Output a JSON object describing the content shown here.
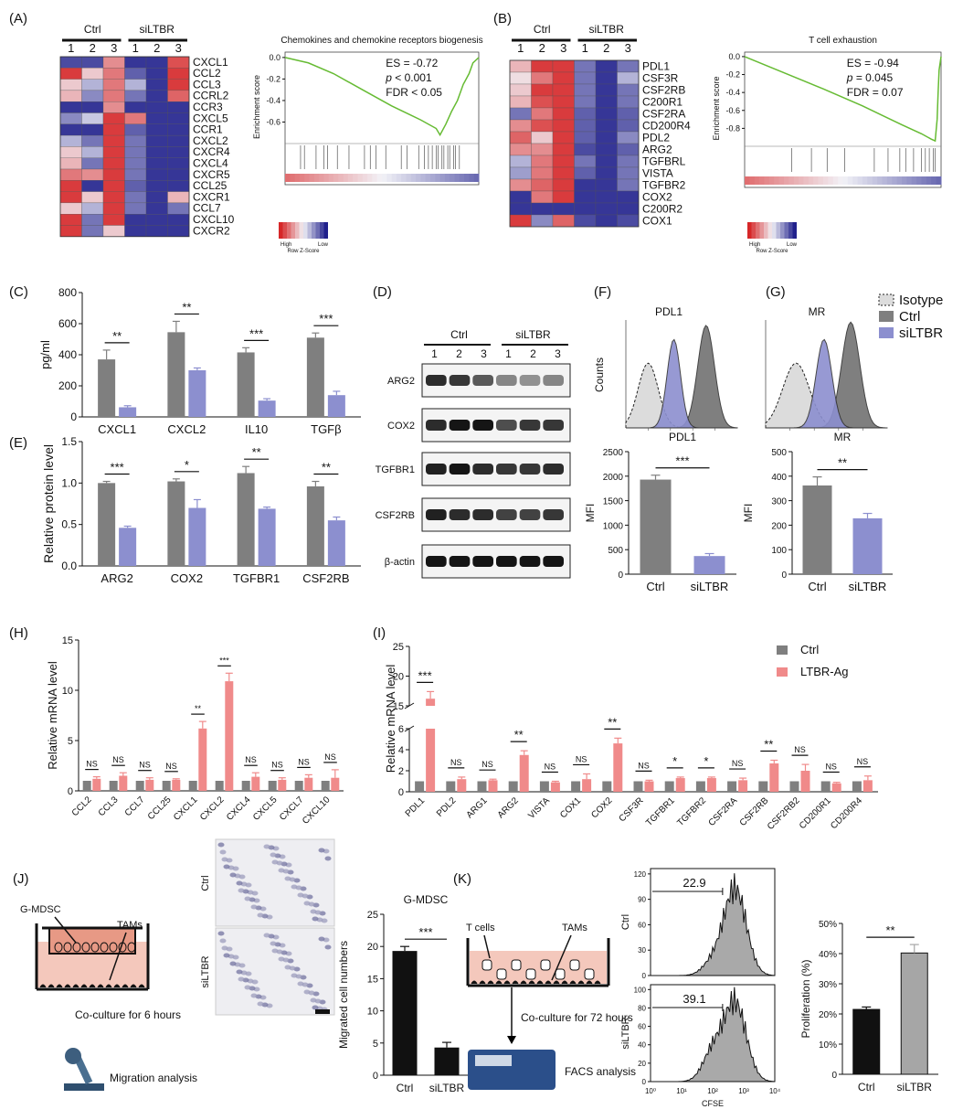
{
  "panels": {
    "A": {
      "label": "(A)",
      "group_labels": [
        "Ctrl",
        "siLTBR"
      ],
      "replicates": [
        "1",
        "2",
        "3",
        "1",
        "2",
        "3"
      ],
      "genes": [
        "CXCL1",
        "CCL2",
        "CCL3",
        "CCRL2",
        "CCR3",
        "CXCL5",
        "CCR1",
        "CXCL2",
        "CXCR4",
        "CXCL4",
        "CXCR5",
        "CCL25",
        "CXCR1",
        "CCL7",
        "CXCL10",
        "CXCR2"
      ],
      "heatmap_scores": [
        [
          -0.8,
          -0.8,
          0.5,
          -0.9,
          -0.9,
          0.8
        ],
        [
          0.9,
          0.2,
          0.6,
          -0.7,
          -0.9,
          0.9
        ],
        [
          0.2,
          -0.3,
          0.6,
          -0.3,
          -0.9,
          0.9
        ],
        [
          0.3,
          -0.5,
          0.6,
          -0.6,
          -0.9,
          0.7
        ],
        [
          -0.9,
          -0.9,
          0.5,
          -0.9,
          -0.9,
          -0.9
        ],
        [
          -0.5,
          -0.2,
          0.9,
          0.6,
          -0.9,
          -0.9
        ],
        [
          -0.9,
          -0.9,
          0.9,
          -0.7,
          -0.9,
          -0.9
        ],
        [
          -0.3,
          -0.6,
          0.9,
          -0.6,
          -0.9,
          -0.9
        ],
        [
          0.2,
          -0.3,
          0.9,
          -0.6,
          -0.9,
          -0.9
        ],
        [
          0.3,
          -0.6,
          0.9,
          -0.6,
          -0.9,
          -0.9
        ],
        [
          0.6,
          0.5,
          0.9,
          -0.6,
          -0.9,
          -0.9
        ],
        [
          0.9,
          -0.9,
          0.9,
          -0.7,
          -0.9,
          -0.9
        ],
        [
          0.9,
          0.2,
          0.9,
          -0.6,
          -0.9,
          0.3
        ],
        [
          0.2,
          -0.3,
          0.9,
          -0.6,
          -0.9,
          -0.6
        ],
        [
          0.9,
          -0.6,
          0.9,
          -0.9,
          -0.9,
          -0.9
        ],
        [
          0.9,
          -0.6,
          0.2,
          -0.9,
          -0.9,
          -0.9
        ]
      ],
      "gsea": {
        "title": "Chemokines and chemokine receptors biogenesis",
        "ylabel": "Enrichment score",
        "yticks": [
          "0.0",
          "-0.2",
          "-0.4",
          "-0.6"
        ],
        "ylim": [
          -0.8,
          0.05
        ],
        "es_text": "ES = -0.72",
        "p_text": "p < 0.001",
        "fdr_text": "FDR < 0.05",
        "curve": [
          [
            0,
            0
          ],
          [
            0.12,
            -0.05
          ],
          [
            0.25,
            -0.15
          ],
          [
            0.4,
            -0.3
          ],
          [
            0.55,
            -0.45
          ],
          [
            0.7,
            -0.58
          ],
          [
            0.78,
            -0.66
          ],
          [
            0.8,
            -0.72
          ],
          [
            0.83,
            -0.62
          ],
          [
            0.86,
            -0.5
          ],
          [
            0.89,
            -0.4
          ],
          [
            0.92,
            -0.25
          ],
          [
            0.95,
            -0.15
          ],
          [
            0.97,
            -0.05
          ],
          [
            1,
            0
          ]
        ],
        "hits": [
          0.08,
          0.1,
          0.16,
          0.2,
          0.22,
          0.27,
          0.33,
          0.41,
          0.44,
          0.47,
          0.52,
          0.6,
          0.63,
          0.69,
          0.72,
          0.74,
          0.76,
          0.78,
          0.79,
          0.81,
          0.82,
          0.84,
          0.85,
          0.87,
          0.88,
          0.9
        ]
      },
      "legend": {
        "high": "High",
        "low": "Low",
        "caption": "Row Z-Score"
      }
    },
    "B": {
      "label": "(B)",
      "group_labels": [
        "Ctrl",
        "siLTBR"
      ],
      "replicates": [
        "1",
        "2",
        "3",
        "1",
        "2",
        "3"
      ],
      "genes": [
        "PDL1",
        "CSF3R",
        "CSF2RB",
        "C200R1",
        "CSF2RA",
        "CD200R4",
        "PDL2",
        "ARG2",
        "TGFBRL",
        "VISTA",
        "TGFBR2",
        "COX2",
        "C200R2",
        "COX1"
      ],
      "heatmap_scores": [
        [
          0.3,
          0.9,
          0.9,
          -0.6,
          -0.9,
          -0.6
        ],
        [
          0.1,
          0.6,
          0.9,
          -0.6,
          -0.9,
          -0.3
        ],
        [
          0.2,
          0.9,
          0.9,
          -0.6,
          -0.9,
          -0.6
        ],
        [
          0.3,
          0.8,
          0.9,
          -0.6,
          -0.9,
          -0.6
        ],
        [
          -0.6,
          0.6,
          0.9,
          -0.7,
          -0.9,
          -0.7
        ],
        [
          0.5,
          0.8,
          0.9,
          -0.7,
          -0.9,
          -0.7
        ],
        [
          0.7,
          0.2,
          0.9,
          -0.7,
          -0.9,
          -0.5
        ],
        [
          0.5,
          0.5,
          0.9,
          -0.8,
          -0.9,
          -0.7
        ],
        [
          -0.3,
          0.6,
          0.9,
          -0.6,
          -0.9,
          -0.6
        ],
        [
          -0.4,
          0.6,
          0.9,
          -0.7,
          -0.9,
          -0.6
        ],
        [
          0.5,
          0.7,
          0.9,
          -0.9,
          -0.9,
          -0.6
        ],
        [
          -0.9,
          0.6,
          0.9,
          -0.9,
          -0.9,
          -0.9
        ],
        [
          -0.9,
          -0.9,
          -0.9,
          -0.9,
          -0.9,
          -0.9
        ],
        [
          0.9,
          -0.5,
          0.7,
          -0.8,
          -0.9,
          -0.8
        ]
      ],
      "gsea": {
        "title": "T cell exhaustion",
        "ylabel": "Enrichment score",
        "yticks": [
          "0.0",
          "-0.2",
          "-0.4",
          "-0.6",
          "-0.8"
        ],
        "ylim": [
          -1.0,
          0.05
        ],
        "es_text": "ES = -0.94",
        "p_text": "p = 0.045",
        "fdr_text": "FDR = 0.07",
        "curve": [
          [
            0,
            0
          ],
          [
            0.2,
            -0.18
          ],
          [
            0.4,
            -0.36
          ],
          [
            0.6,
            -0.55
          ],
          [
            0.8,
            -0.76
          ],
          [
            0.9,
            -0.86
          ],
          [
            0.95,
            -0.92
          ],
          [
            0.97,
            -0.94
          ],
          [
            0.98,
            -0.7
          ],
          [
            0.985,
            -0.4
          ],
          [
            0.99,
            -0.15
          ],
          [
            1,
            0
          ]
        ],
        "hits": [
          0.24,
          0.34,
          0.42,
          0.51,
          0.66,
          0.73,
          0.79,
          0.82,
          0.86,
          0.9,
          0.92,
          0.94,
          0.96,
          0.97
        ]
      },
      "legend": {
        "high": "High",
        "low": "Low",
        "caption": "Row Z-Score"
      }
    },
    "C": {
      "label": "(C)",
      "ylabel": "pg/ml",
      "yticks": [
        "0",
        "200",
        "400",
        "600",
        "800"
      ],
      "ylim": [
        0,
        800
      ],
      "categories": [
        "CXCL1",
        "CXCL2",
        "IL10",
        "TGFβ"
      ],
      "series": [
        {
          "values": [
            370,
            545,
            415,
            510
          ],
          "errors": [
            60,
            70,
            30,
            30
          ]
        },
        {
          "values": [
            62,
            300,
            105,
            140
          ],
          "errors": [
            10,
            15,
            12,
            25
          ]
        }
      ],
      "significance": [
        "**",
        "**",
        "***",
        "***"
      ]
    },
    "D": {
      "label": "(D)",
      "group_labels": [
        "Ctrl",
        "siLTBR"
      ],
      "replicates": [
        "1",
        "2",
        "3",
        "1",
        "2",
        "3"
      ],
      "bands": [
        "ARG2",
        "COX2",
        "TGFBR1",
        "CSF2RB",
        "β-actin"
      ],
      "band_intensity": [
        [
          0.85,
          0.8,
          0.65,
          0.45,
          0.4,
          0.45
        ],
        [
          0.85,
          0.95,
          0.95,
          0.7,
          0.8,
          0.8
        ],
        [
          0.9,
          0.95,
          0.85,
          0.8,
          0.8,
          0.85
        ],
        [
          0.9,
          0.85,
          0.85,
          0.75,
          0.75,
          0.8
        ],
        [
          0.95,
          0.95,
          0.95,
          0.95,
          0.95,
          0.95
        ]
      ]
    },
    "E": {
      "label": "(E)",
      "ylabel": "Relative protein level",
      "yticks": [
        "0.0",
        "0.5",
        "1.0",
        "1.5"
      ],
      "ylim": [
        0,
        1.5
      ],
      "categories": [
        "ARG2",
        "COX2",
        "TGFBR1",
        "CSF2RB"
      ],
      "series": [
        {
          "values": [
            1.0,
            1.02,
            1.12,
            0.96
          ],
          "errors": [
            0.02,
            0.03,
            0.08,
            0.06
          ]
        },
        {
          "values": [
            0.46,
            0.7,
            0.69,
            0.55
          ],
          "errors": [
            0.02,
            0.1,
            0.02,
            0.04
          ]
        }
      ],
      "significance": [
        "***",
        "*",
        "**",
        "**"
      ]
    },
    "F": {
      "label": "(F)",
      "hist_title": "PDL1",
      "hist_ylabel": "Counts",
      "bar_title": "PDL1",
      "ylabel": "MFI",
      "yticks": [
        "0",
        "500",
        "1000",
        "1500",
        "2000",
        "2500"
      ],
      "ylim": [
        0,
        2500
      ],
      "categories": [
        "Ctrl",
        "siLTBR"
      ],
      "values": [
        1930,
        370
      ],
      "errors": [
        90,
        50
      ],
      "significance": "***"
    },
    "G": {
      "label": "(G)",
      "hist_title": "MR",
      "bar_title": "MR",
      "ylabel": "MFI",
      "yticks": [
        "0",
        "100",
        "200",
        "300",
        "400",
        "500"
      ],
      "ylim": [
        0,
        500
      ],
      "categories": [
        "Ctrl",
        "siLTBR"
      ],
      "values": [
        362,
        228
      ],
      "errors": [
        35,
        20
      ],
      "significance": "**"
    },
    "FG_legend": [
      "Isotype",
      "Ctrl",
      "siLTBR"
    ],
    "H": {
      "label": "(H)",
      "ylabel": "Relative mRNA level",
      "yticks": [
        "0",
        "5",
        "10",
        "15"
      ],
      "ylim": [
        0,
        15
      ],
      "categories": [
        "CCL2",
        "CCL3",
        "CCL7",
        "CCL25",
        "CXCL1",
        "CXCL2",
        "CXCL4",
        "CXCL5",
        "CXCL7",
        "CXCL10"
      ],
      "series": [
        {
          "values": [
            1,
            1,
            1,
            1,
            1,
            1,
            1,
            1,
            1,
            1
          ],
          "errors": [
            0,
            0,
            0,
            0,
            0,
            0,
            0,
            0,
            0,
            0
          ]
        },
        {
          "values": [
            1.2,
            1.5,
            1.1,
            1.1,
            6.2,
            10.9,
            1.4,
            1.1,
            1.3,
            1.3
          ],
          "errors": [
            0.2,
            0.3,
            0.2,
            0.1,
            0.7,
            0.8,
            0.4,
            0.2,
            0.3,
            0.8
          ]
        }
      ],
      "significance": [
        "NS",
        "NS",
        "NS",
        "NS",
        "**",
        "***",
        "NS",
        "NS",
        "NS",
        "NS"
      ]
    },
    "I": {
      "label": "(I)",
      "ylabel": "Relative mRNA level",
      "yticks_low": [
        "0",
        "2",
        "4",
        "6"
      ],
      "yticks_high": [
        "15",
        "20",
        "25"
      ],
      "categories": [
        "PDL1",
        "PDL2",
        "ARG1",
        "ARG2",
        "VISTA",
        "COX1",
        "COX2",
        "CSF3R",
        "TGFBR1",
        "TGFBR2",
        "CSF2RA",
        "CSF2RB",
        "CSF2RB2",
        "CD200R1",
        "CD200R4"
      ],
      "series": [
        {
          "name": "Ctrl",
          "values": [
            1,
            1,
            1,
            1,
            1,
            1,
            1,
            1,
            1,
            1,
            1,
            1,
            1,
            1,
            1
          ],
          "errors": [
            0,
            0,
            0,
            0,
            0,
            0,
            0,
            0,
            0,
            0,
            0,
            0,
            0,
            0,
            0
          ]
        },
        {
          "name": "LTBR-Ag",
          "values": [
            16.2,
            1.2,
            1.1,
            3.5,
            0.9,
            1.2,
            4.6,
            1.0,
            1.3,
            1.3,
            1.1,
            2.7,
            2.0,
            0.8,
            1.1
          ],
          "errors": [
            1.2,
            0.2,
            0.1,
            0.4,
            0.1,
            0.5,
            0.5,
            0.1,
            0.1,
            0.1,
            0.2,
            0.3,
            0.6,
            0.1,
            0.4
          ]
        }
      ],
      "significance": [
        "***",
        "NS",
        "NS",
        "**",
        "NS",
        "NS",
        "**",
        "NS",
        "*",
        "*",
        "NS",
        "**",
        "NS",
        "NS",
        "NS"
      ]
    },
    "J": {
      "label": "(J)",
      "mdsc_label": "G-MDSC",
      "tam_label": "TAMs",
      "coculture_text": "Co-culture for 6 hours",
      "migration_text": "Migration analysis",
      "image_labels": [
        "Ctrl",
        "siLTBR"
      ],
      "bar_title": "G-MDSC",
      "ylabel": "Migrated cell numbers",
      "yticks": [
        "0",
        "5",
        "10",
        "15",
        "20",
        "25"
      ],
      "ylim": [
        0,
        25
      ],
      "categories": [
        "Ctrl",
        "siLTBR"
      ],
      "values": [
        19.3,
        4.3
      ],
      "errors": [
        0.7,
        0.8
      ],
      "significance": "***"
    },
    "K": {
      "label": "(K)",
      "tcell_label": "T cells",
      "tam_label": "TAMs",
      "coculture_text": "Co-culture for 72 hours",
      "facs_text": "FACS analysis",
      "hist_rows": [
        {
          "label": "Ctrl",
          "gate_value": "22.9",
          "yticks": [
            "0",
            "30",
            "60",
            "90",
            "120"
          ]
        },
        {
          "label": "siLTBR",
          "gate_value": "39.1",
          "yticks": [
            "0",
            "20",
            "40",
            "60",
            "80",
            "100"
          ]
        }
      ],
      "xlabel": "CFSE",
      "xticks": [
        "10⁰",
        "10¹",
        "10²",
        "10³",
        "10⁴"
      ],
      "ylabel": "Proliferation (%)",
      "yticks": [
        "0",
        "10%",
        "20%",
        "30%",
        "40%",
        "50%"
      ],
      "ylim": [
        0,
        50
      ],
      "categories": [
        "Ctrl",
        "siLTBR"
      ],
      "values": [
        21.5,
        40.2
      ],
      "errors": [
        0.8,
        2.8
      ],
      "significance": "**"
    }
  },
  "colors": {
    "ctrl": "#7f7f7f",
    "treated": "#8c8fcf",
    "ltbr_ag": "#f08a8a",
    "black_bar": "#111111",
    "grey_bar": "#a6a6a6",
    "heat_high": "#d62728",
    "heat_mid": "#f2f2f7",
    "heat_low": "#21218c",
    "gsea_line": "#66bb33"
  }
}
